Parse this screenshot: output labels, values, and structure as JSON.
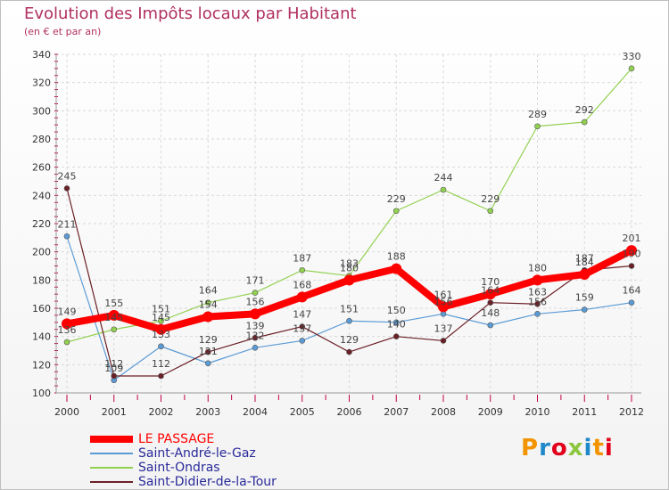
{
  "title": "Evolution des Impôts locaux par Habitant",
  "subtitle": "(en € et par an)",
  "brand": "Proxiti",
  "chart_data": {
    "type": "line",
    "x": [
      "2000",
      "2001",
      "2002",
      "2003",
      "2004",
      "2005",
      "2006",
      "2007",
      "2008",
      "2009",
      "2010",
      "2011",
      "2012"
    ],
    "ylim": [
      100,
      340
    ],
    "yticks": [
      100,
      120,
      140,
      160,
      180,
      200,
      220,
      240,
      260,
      280,
      300,
      320,
      340
    ],
    "grid": true,
    "legend_position": "bottom-left",
    "series": [
      {
        "name": "LE PASSAGE",
        "color": "#ff0000",
        "values": [
          149,
          155,
          145,
          154,
          156,
          168,
          180,
          188,
          161,
          170,
          180,
          184,
          201
        ],
        "labels": [
          "149",
          "155",
          "145",
          "154",
          "156",
          "168",
          "180",
          "188",
          "161",
          "170",
          "180",
          "184",
          "201"
        ]
      },
      {
        "name": "Saint-André-le-Gaz",
        "color": "#5b9bd5",
        "values": [
          211,
          109,
          133,
          121,
          132,
          137,
          151,
          150,
          156,
          148,
          156,
          159,
          164
        ],
        "labels": [
          "211",
          "109",
          "133",
          "121",
          "132",
          "137",
          "151",
          "150",
          "156",
          "148",
          "156",
          "159",
          "164"
        ]
      },
      {
        "name": "Saint-Ondras",
        "color": "#92d050",
        "values": [
          136,
          145,
          151,
          164,
          171,
          187,
          183,
          229,
          244,
          229,
          289,
          292,
          330
        ],
        "labels": [
          "136",
          "145",
          "151",
          "164",
          "171",
          "187",
          "183",
          "229",
          "244",
          "229",
          "289",
          "292",
          "330"
        ]
      },
      {
        "name": "Saint-Didier-de-la-Tour",
        "color": "#6b1f26",
        "values": [
          245,
          112,
          112,
          129,
          139,
          147,
          129,
          140,
          137,
          164,
          163,
          187,
          190
        ],
        "labels": [
          "245",
          "112",
          "112",
          "129",
          "139",
          "147",
          "129",
          "140",
          "137",
          "164",
          "163",
          "187",
          "190"
        ]
      }
    ]
  }
}
